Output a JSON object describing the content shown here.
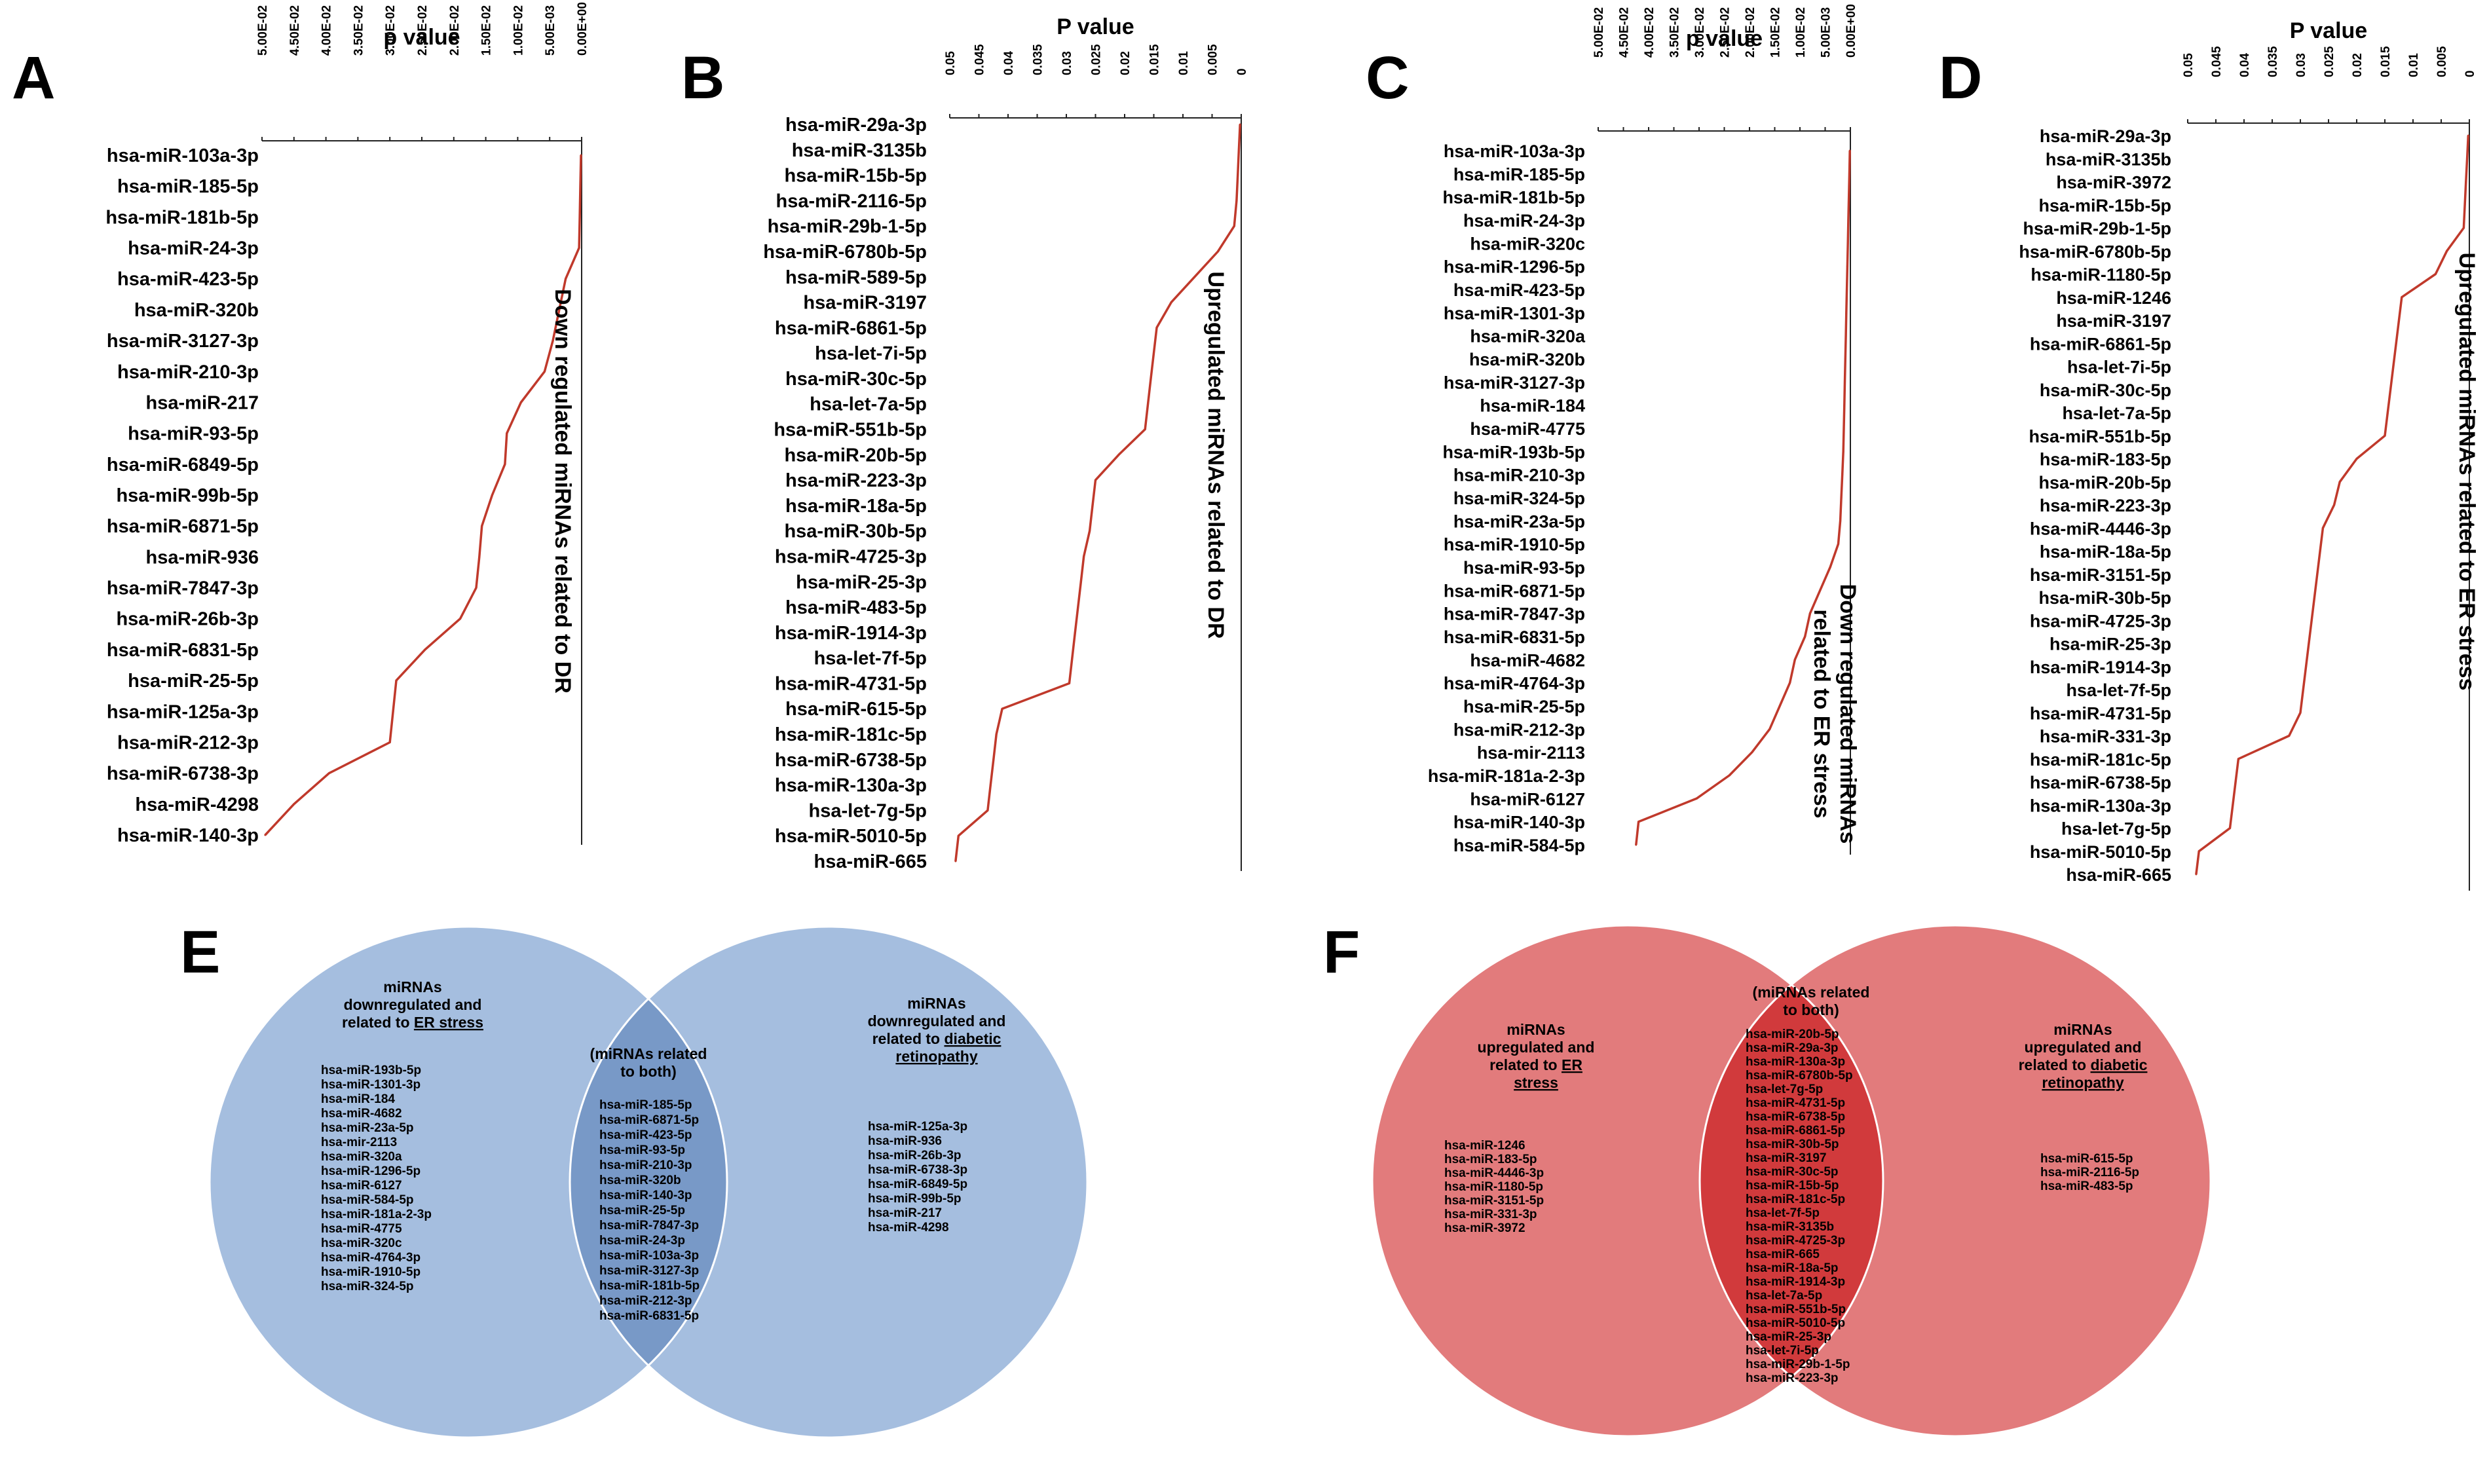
{
  "figure": {
    "panel_labels": [
      "A",
      "B",
      "C",
      "D",
      "E",
      "F"
    ]
  },
  "colors": {
    "line": "#c0392b",
    "axis": "#222222",
    "blue_left": "#a5bedf",
    "blue_right": "#a5bedf",
    "blue_overlap": "#7899c7",
    "red_left": "#e27b7c",
    "red_right": "#e27b7c",
    "red_overlap": "#d13a3c"
  },
  "chart_data": [
    {
      "panel": "A",
      "type": "line",
      "title": "p value",
      "side_label": "Down regulated miRNAs related to DR",
      "xlim": [
        0.05,
        0
      ],
      "tick_values": [
        0.05,
        0.045,
        0.04,
        0.035,
        0.03,
        0.025,
        0.02,
        0.015,
        0.01,
        0.005,
        0
      ],
      "tick_labels": [
        "5.00E-02",
        "4.50E-02",
        "4.00E-02",
        "3.50E-02",
        "3.00E-02",
        "2.50E-02",
        "2.00E-02",
        "1.50E-02",
        "1.00E-02",
        "5.00E-03",
        "0.00E+00"
      ],
      "categories": [
        "hsa-miR-103a-3p",
        "hsa-miR-185-5p",
        "hsa-miR-181b-5p",
        "hsa-miR-24-3p",
        "hsa-miR-423-5p",
        "hsa-miR-320b",
        "hsa-miR-3127-3p",
        "hsa-miR-210-3p",
        "hsa-miR-217",
        "hsa-miR-93-5p",
        "hsa-miR-6849-5p",
        "hsa-miR-99b-5p",
        "hsa-miR-6871-5p",
        "hsa-miR-936",
        "hsa-miR-7847-3p",
        "hsa-miR-26b-3p",
        "hsa-miR-6831-5p",
        "hsa-miR-25-5p",
        "hsa-miR-125a-3p",
        "hsa-miR-212-3p",
        "hsa-miR-6738-3p",
        "hsa-miR-4298",
        "hsa-miR-140-3p"
      ],
      "values": [
        0.0001,
        0.0002,
        0.0003,
        0.0004,
        0.0025,
        0.0035,
        0.0045,
        0.0058,
        0.0095,
        0.0117,
        0.012,
        0.014,
        0.0156,
        0.016,
        0.0165,
        0.019,
        0.0245,
        0.029,
        0.0295,
        0.03,
        0.0395,
        0.045,
        0.0495
      ]
    },
    {
      "panel": "B",
      "type": "line",
      "title": "P value",
      "side_label": "Upregulated miRNAs related to DR",
      "xlim": [
        0.05,
        0
      ],
      "tick_values": [
        0.05,
        0.045,
        0.04,
        0.035,
        0.03,
        0.025,
        0.02,
        0.015,
        0.01,
        0.005,
        0
      ],
      "tick_labels": [
        "0.05",
        "0.045",
        "0.04",
        "0.035",
        "0.03",
        "0.025",
        "0.02",
        "0.015",
        "0.01",
        "0.005",
        "0"
      ],
      "categories": [
        "hsa-miR-29a-3p",
        "hsa-miR-3135b",
        "hsa-miR-15b-5p",
        "hsa-miR-2116-5p",
        "hsa-miR-29b-1-5p",
        "hsa-miR-6780b-5p",
        "hsa-miR-589-5p",
        "hsa-miR-3197",
        "hsa-miR-6861-5p",
        "hsa-let-7i-5p",
        "hsa-miR-30c-5p",
        "hsa-let-7a-5p",
        "hsa-miR-551b-5p",
        "hsa-miR-20b-5p",
        "hsa-miR-223-3p",
        "hsa-miR-18a-5p",
        "hsa-miR-30b-5p",
        "hsa-miR-4725-3p",
        "hsa-miR-25-3p",
        "hsa-miR-483-5p",
        "hsa-miR-1914-3p",
        "hsa-let-7f-5p",
        "hsa-miR-4731-5p",
        "hsa-miR-615-5p",
        "hsa-miR-181c-5p",
        "hsa-miR-6738-5p",
        "hsa-miR-130a-3p",
        "hsa-let-7g-5p",
        "hsa-miR-5010-5p",
        "hsa-miR-665"
      ],
      "values": [
        0.0002,
        0.0004,
        0.0006,
        0.0008,
        0.0012,
        0.004,
        0.008,
        0.012,
        0.0145,
        0.015,
        0.0155,
        0.016,
        0.0165,
        0.021,
        0.025,
        0.0255,
        0.026,
        0.027,
        0.0275,
        0.028,
        0.0285,
        0.029,
        0.0295,
        0.041,
        0.042,
        0.0425,
        0.043,
        0.0435,
        0.0485,
        0.049
      ]
    },
    {
      "panel": "C",
      "type": "line",
      "title": "p value",
      "side_label": "Down regulated miRNAs related to ER stress",
      "xlim": [
        0.05,
        0
      ],
      "tick_values": [
        0.05,
        0.045,
        0.04,
        0.035,
        0.03,
        0.025,
        0.02,
        0.015,
        0.01,
        0.005,
        0
      ],
      "tick_labels": [
        "5.00E-02",
        "4.50E-02",
        "4.00E-02",
        "3.50E-02",
        "3.00E-02",
        "2.50E-02",
        "2.00E-02",
        "1.50E-02",
        "1.00E-02",
        "5.00E-03",
        "0.00E+00"
      ],
      "categories": [
        "hsa-miR-103a-3p",
        "hsa-miR-185-5p",
        "hsa-miR-181b-5p",
        "hsa-miR-24-3p",
        "hsa-miR-320c",
        "hsa-miR-1296-5p",
        "hsa-miR-423-5p",
        "hsa-miR-1301-3p",
        "hsa-miR-320a",
        "hsa-miR-320b",
        "hsa-miR-3127-3p",
        "hsa-miR-184",
        "hsa-miR-4775",
        "hsa-miR-193b-5p",
        "hsa-miR-210-3p",
        "hsa-miR-324-5p",
        "hsa-miR-23a-5p",
        "hsa-miR-1910-5p",
        "hsa-miR-93-5p",
        "hsa-miR-6871-5p",
        "hsa-miR-7847-3p",
        "hsa-miR-6831-5p",
        "hsa-miR-4682",
        "hsa-miR-4764-3p",
        "hsa-miR-25-5p",
        "hsa-miR-212-3p",
        "hsa-mir-2113",
        "hsa-miR-181a-2-3p",
        "hsa-miR-6127",
        "hsa-miR-140-3p",
        "hsa-miR-584-5p"
      ],
      "values": [
        0.0001,
        0.0002,
        0.0003,
        0.0004,
        0.0005,
        0.0006,
        0.0007,
        0.0008,
        0.0009,
        0.001,
        0.0011,
        0.0012,
        0.0013,
        0.0014,
        0.0016,
        0.0018,
        0.002,
        0.0024,
        0.004,
        0.006,
        0.008,
        0.009,
        0.011,
        0.012,
        0.014,
        0.016,
        0.0195,
        0.024,
        0.0305,
        0.042,
        0.0425
      ]
    },
    {
      "panel": "D",
      "type": "line",
      "title": "P value",
      "side_label": "Upregulated miRNAs related to ER stress",
      "xlim": [
        0.05,
        0
      ],
      "tick_values": [
        0.05,
        0.045,
        0.04,
        0.035,
        0.03,
        0.025,
        0.02,
        0.015,
        0.01,
        0.005,
        0
      ],
      "tick_labels": [
        "0.05",
        "0.045",
        "0.04",
        "0.035",
        "0.03",
        "0.025",
        "0.02",
        "0.015",
        "0.01",
        "0.005",
        "0"
      ],
      "categories": [
        "hsa-miR-29a-3p",
        "hsa-miR-3135b",
        "hsa-miR-3972",
        "hsa-miR-15b-5p",
        "hsa-miR-29b-1-5p",
        "hsa-miR-6780b-5p",
        "hsa-miR-1180-5p",
        "hsa-miR-1246",
        "hsa-miR-3197",
        "hsa-miR-6861-5p",
        "hsa-let-7i-5p",
        "hsa-miR-30c-5p",
        "hsa-let-7a-5p",
        "hsa-miR-551b-5p",
        "hsa-miR-183-5p",
        "hsa-miR-20b-5p",
        "hsa-miR-223-3p",
        "hsa-miR-4446-3p",
        "hsa-miR-18a-5p",
        "hsa-miR-3151-5p",
        "hsa-miR-30b-5p",
        "hsa-miR-4725-3p",
        "hsa-miR-25-3p",
        "hsa-miR-1914-3p",
        "hsa-let-7f-5p",
        "hsa-miR-4731-5p",
        "hsa-miR-331-3p",
        "hsa-miR-181c-5p",
        "hsa-miR-6738-5p",
        "hsa-miR-130a-3p",
        "hsa-let-7g-5p",
        "hsa-miR-5010-5p",
        "hsa-miR-665"
      ],
      "values": [
        0.0002,
        0.0004,
        0.0006,
        0.0008,
        0.001,
        0.004,
        0.006,
        0.012,
        0.0125,
        0.013,
        0.0135,
        0.014,
        0.0145,
        0.015,
        0.02,
        0.023,
        0.024,
        0.026,
        0.0265,
        0.027,
        0.0275,
        0.028,
        0.0285,
        0.029,
        0.0295,
        0.03,
        0.032,
        0.041,
        0.0415,
        0.042,
        0.0425,
        0.048,
        0.0485
      ]
    },
    {
      "panel": "E",
      "type": "venn",
      "left": {
        "header": [
          "miRNAs",
          "downregulated and",
          "related to "
        ],
        "header_underlined": "ER stress",
        "items": [
          "hsa-miR-193b-5p",
          "hsa-miR-1301-3p",
          "hsa-miR-184",
          "hsa-miR-4682",
          "hsa-miR-23a-5p",
          "hsa-mir-2113",
          "hsa-miR-320a",
          "hsa-miR-1296-5p",
          "hsa-miR-6127",
          "hsa-miR-584-5p",
          "hsa-miR-181a-2-3p",
          "hsa-miR-4775",
          "hsa-miR-320c",
          "hsa-miR-4764-3p",
          "hsa-miR-1910-5p",
          "hsa-miR-324-5p"
        ]
      },
      "center": {
        "header": [
          "(miRNAs related",
          "to both)"
        ],
        "items": [
          "hsa-miR-185-5p",
          "hsa-miR-6871-5p",
          "hsa-miR-423-5p",
          "hsa-miR-93-5p",
          "hsa-miR-210-3p",
          "hsa-miR-320b",
          "hsa-miR-140-3p",
          "hsa-miR-25-5p",
          "hsa-miR-7847-3p",
          "hsa-miR-24-3p",
          "hsa-miR-103a-3p",
          "hsa-miR-3127-3p",
          "hsa-miR-181b-5p",
          "hsa-miR-212-3p",
          "hsa-miR-6831-5p"
        ]
      },
      "right": {
        "header": [
          "miRNAs",
          "downregulated and",
          "related to "
        ],
        "header_underlined": [
          "diabetic",
          "retinopathy"
        ],
        "items": [
          "hsa-miR-125a-3p",
          "hsa-miR-936",
          "hsa-miR-26b-3p",
          "hsa-miR-6738-3p",
          "hsa-miR-6849-5p",
          "hsa-miR-99b-5p",
          "hsa-miR-217",
          "hsa-miR-4298"
        ]
      }
    },
    {
      "panel": "F",
      "type": "venn",
      "left": {
        "header": [
          "miRNAs",
          "upregulated and",
          "related to "
        ],
        "header_underlined": [
          "ER",
          "stress"
        ],
        "items": [
          "hsa-miR-1246",
          "hsa-miR-183-5p",
          "hsa-miR-4446-3p",
          "hsa-miR-1180-5p",
          "hsa-miR-3151-5p",
          "hsa-miR-331-3p",
          "hsa-miR-3972"
        ]
      },
      "center": {
        "header": [
          "(miRNAs related",
          "to both)"
        ],
        "items": [
          "hsa-miR-20b-5p",
          "hsa-miR-29a-3p",
          "hsa-miR-130a-3p",
          "hsa-miR-6780b-5p",
          "hsa-let-7g-5p",
          "hsa-miR-4731-5p",
          "hsa-miR-6738-5p",
          "hsa-miR-6861-5p",
          "hsa-miR-30b-5p",
          "hsa-miR-3197",
          "hsa-miR-30c-5p",
          "hsa-miR-15b-5p",
          "hsa-miR-181c-5p",
          "hsa-let-7f-5p",
          "hsa-miR-3135b",
          "hsa-miR-4725-3p",
          "hsa-miR-665",
          "hsa-miR-18a-5p",
          "hsa-miR-1914-3p",
          "hsa-let-7a-5p",
          "hsa-miR-551b-5p",
          "hsa-miR-5010-5p",
          "hsa-miR-25-3p",
          "hsa-let-7i-5p",
          "hsa-miR-29b-1-5p",
          "hsa-miR-223-3p"
        ]
      },
      "right": {
        "header": [
          "miRNAs",
          "upregulated and",
          "related to "
        ],
        "header_underlined": [
          "diabetic",
          "retinopathy"
        ],
        "items": [
          "hsa-miR-615-5p",
          "hsa-miR-2116-5p",
          "hsa-miR-483-5p"
        ]
      }
    }
  ]
}
